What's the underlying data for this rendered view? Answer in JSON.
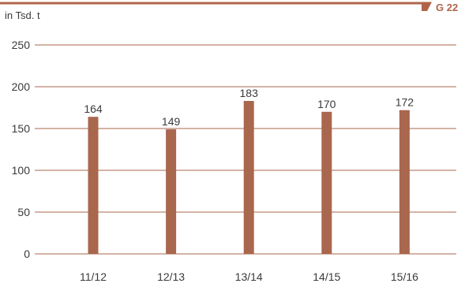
{
  "header": {
    "unit": "in Tsd. t",
    "figure_label": "G 22"
  },
  "colors": {
    "accent": "#b0654a",
    "bar": "#a9674e",
    "grid": "#a9674e",
    "text": "#3a3a3a"
  },
  "chart_data": {
    "type": "bar",
    "categories": [
      "11/12",
      "12/13",
      "13/14",
      "14/15",
      "15/16"
    ],
    "values": [
      164,
      149,
      183,
      170,
      172
    ],
    "data_labels": [
      "164",
      "149",
      "183",
      "170",
      "172"
    ],
    "ylabel": "in Tsd. t",
    "ylim": [
      0,
      250
    ],
    "yticks": [
      0,
      50,
      100,
      150,
      200,
      250
    ],
    "grid": true,
    "legend": "none"
  }
}
